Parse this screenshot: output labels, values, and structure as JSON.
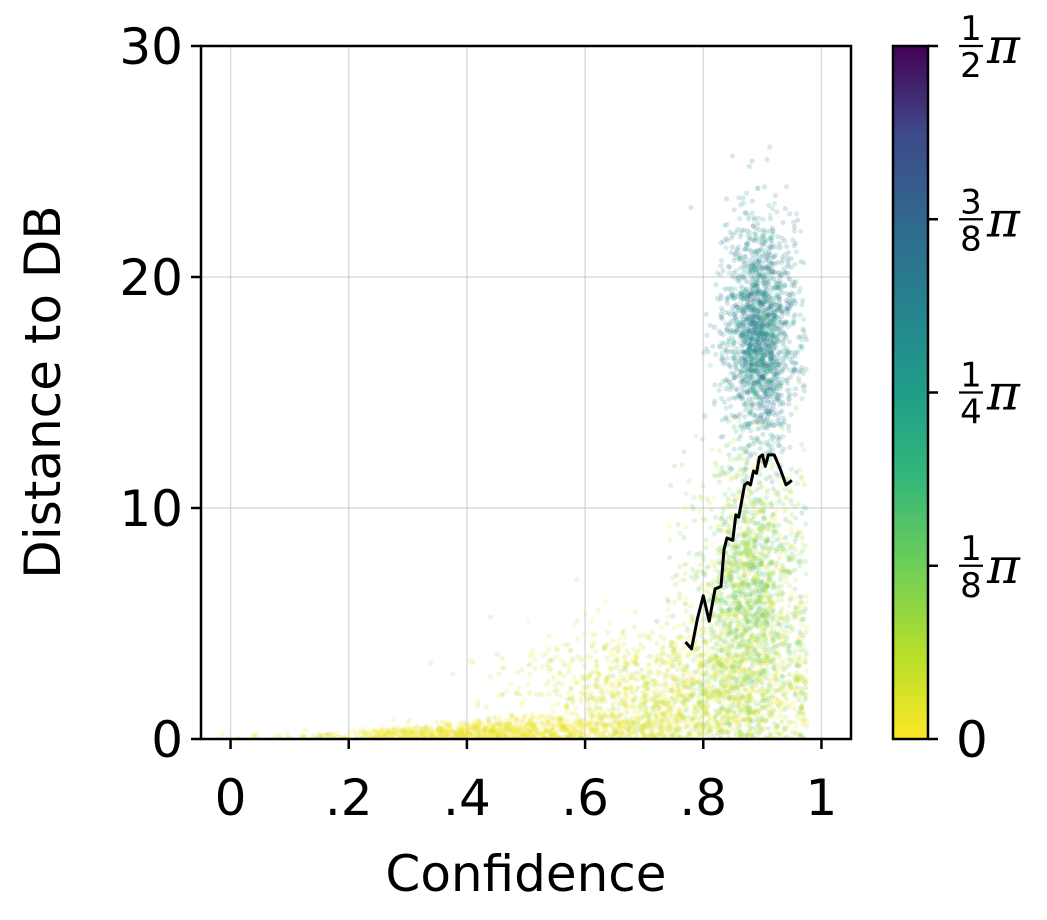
{
  "chart_data": {
    "type": "scatter",
    "xlabel": "Confidence",
    "ylabel": "Distance to DB",
    "xlim": [
      -0.05,
      1.05
    ],
    "ylim": [
      0,
      30
    ],
    "x_ticks": [
      {
        "value": 0,
        "label": "0"
      },
      {
        "value": 0.2,
        "label": ".2"
      },
      {
        "value": 0.4,
        "label": ".4"
      },
      {
        "value": 0.6,
        "label": ".6"
      },
      {
        "value": 0.8,
        "label": ".8"
      },
      {
        "value": 1.0,
        "label": "1"
      }
    ],
    "y_ticks": [
      {
        "value": 0,
        "label": "0"
      },
      {
        "value": 10,
        "label": "10"
      },
      {
        "value": 20,
        "label": "20"
      },
      {
        "value": 30,
        "label": "30"
      }
    ],
    "grid": true,
    "colormap": "viridis_r",
    "colorbar": {
      "range": [
        0,
        1.5708
      ],
      "ticks": [
        {
          "value": 0,
          "label": "0"
        },
        {
          "value": 0.3927,
          "numerator": "1",
          "denominator": "8",
          "symbol": "π"
        },
        {
          "value": 0.7854,
          "numerator": "1",
          "denominator": "4",
          "symbol": "π"
        },
        {
          "value": 1.1781,
          "numerator": "3",
          "denominator": "8",
          "symbol": "π"
        },
        {
          "value": 1.5708,
          "numerator": "1",
          "denominator": "2",
          "symbol": "π"
        }
      ]
    },
    "scatter_clusters": [
      {
        "x_center": 0.895,
        "x_spread": 0.03,
        "y_center": 17.5,
        "y_spread": 2.5,
        "angle_center": 0.95,
        "angle_spread": 0.18,
        "count": 1800
      },
      {
        "x_center": 0.88,
        "x_spread": 0.045,
        "y_center": 6.0,
        "y_spread": 3.0,
        "angle_center": 0.3,
        "angle_spread": 0.18,
        "count": 1800
      },
      {
        "x_center": 0.75,
        "x_spread": 0.12,
        "y_center": 2.0,
        "y_spread": 1.4,
        "angle_center": 0.12,
        "angle_spread": 0.1,
        "count": 1500
      },
      {
        "x_center": 0.45,
        "x_spread": 0.15,
        "y_center": 0.7,
        "y_spread": 0.6,
        "angle_center": 0.04,
        "angle_spread": 0.05,
        "count": 1100
      }
    ],
    "trend_line": {
      "color": "#000000",
      "x": [
        0.77,
        0.78,
        0.79,
        0.8,
        0.81,
        0.82,
        0.83,
        0.835,
        0.84,
        0.85,
        0.855,
        0.86,
        0.87,
        0.875,
        0.88,
        0.885,
        0.89,
        0.895,
        0.9,
        0.905,
        0.91,
        0.92,
        0.93,
        0.94,
        0.95
      ],
      "y": [
        4.2,
        3.9,
        5.2,
        6.2,
        5.1,
        6.5,
        6.6,
        8.2,
        8.7,
        8.6,
        9.7,
        9.6,
        11.0,
        11.1,
        11.0,
        11.6,
        11.5,
        12.2,
        12.3,
        11.8,
        12.3,
        12.3,
        11.7,
        11.0,
        11.2
      ]
    }
  }
}
